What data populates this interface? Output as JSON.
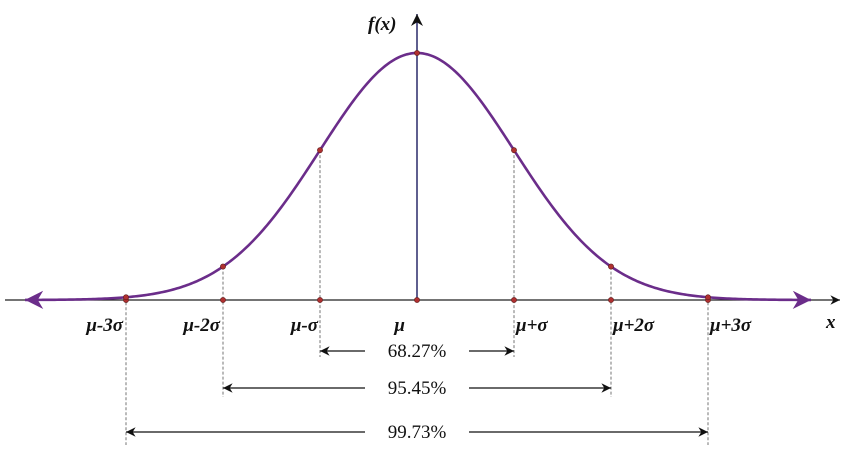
{
  "axes": {
    "y_label": "f(x)",
    "x_label": "x"
  },
  "ticks": [
    "μ-3σ",
    "μ-2σ",
    "μ-σ",
    "μ",
    "μ+σ",
    "μ+2σ",
    "μ+3σ"
  ],
  "intervals": [
    {
      "label": "68.27%"
    },
    {
      "label": "95.45%"
    },
    {
      "label": "99.73%"
    }
  ]
}
